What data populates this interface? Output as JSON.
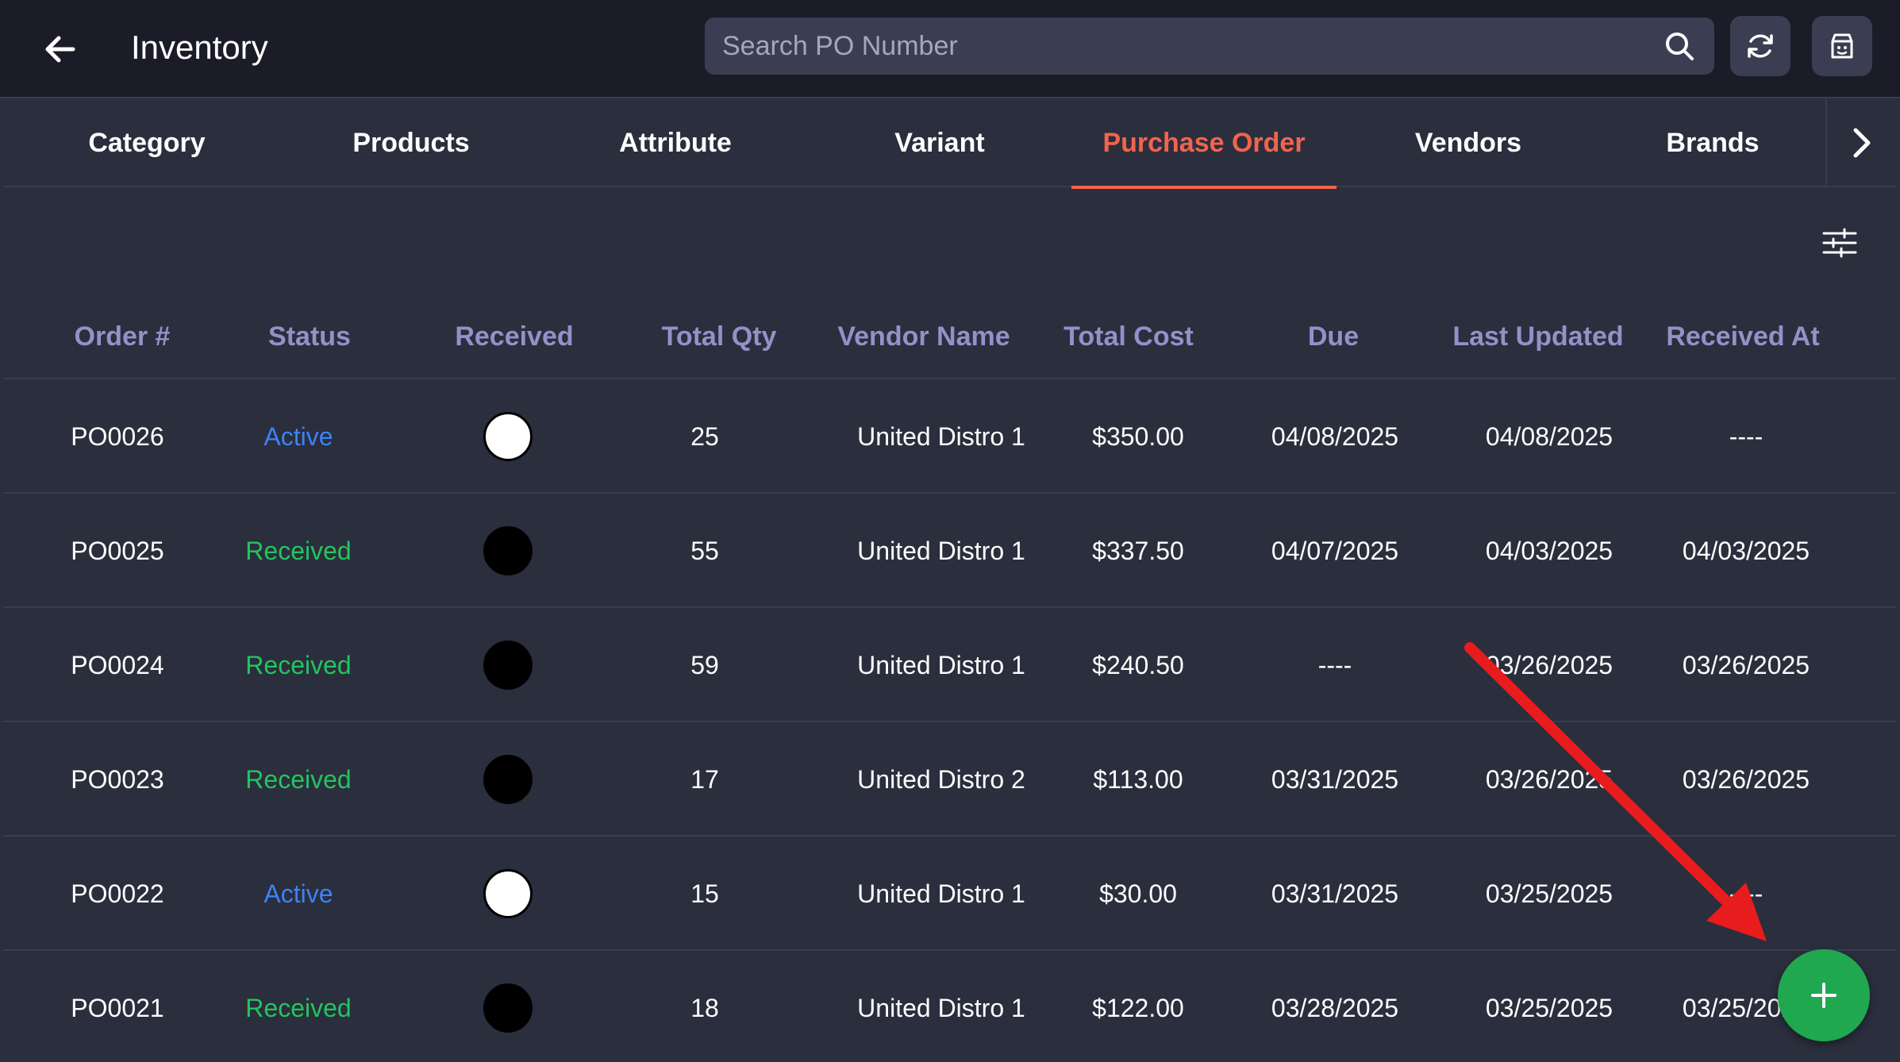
{
  "header": {
    "title": "Inventory",
    "search_placeholder": "Search PO Number",
    "icons": [
      "back-arrow-icon",
      "search-icon",
      "refresh-icon",
      "store-icon"
    ]
  },
  "tabs": [
    {
      "label": "Category",
      "active": false
    },
    {
      "label": "Products",
      "active": false
    },
    {
      "label": "Attribute",
      "active": false
    },
    {
      "label": "Variant",
      "active": false
    },
    {
      "label": "Purchase Order",
      "active": true
    },
    {
      "label": "Vendors",
      "active": false
    },
    {
      "label": "Brands",
      "active": false
    }
  ],
  "table": {
    "columns": [
      "Order #",
      "Status",
      "Received",
      "Total Qty",
      "Vendor Name",
      "Total Cost",
      "Due",
      "Last Updated",
      "Received At"
    ],
    "rows": [
      {
        "order": "PO0026",
        "status": "Active",
        "received": false,
        "qty": "25",
        "vendor": "United Distro 1",
        "cost": "$350.00",
        "due": "04/08/2025",
        "updated": "04/08/2025",
        "received_at": "----"
      },
      {
        "order": "PO0025",
        "status": "Received",
        "received": true,
        "qty": "55",
        "vendor": "United Distro 1",
        "cost": "$337.50",
        "due": "04/07/2025",
        "updated": "04/03/2025",
        "received_at": "04/03/2025"
      },
      {
        "order": "PO0024",
        "status": "Received",
        "received": true,
        "qty": "59",
        "vendor": "United Distro 1",
        "cost": "$240.50",
        "due": "----",
        "updated": "03/26/2025",
        "received_at": "03/26/2025"
      },
      {
        "order": "PO0023",
        "status": "Received",
        "received": true,
        "qty": "17",
        "vendor": "United Distro 2",
        "cost": "$113.00",
        "due": "03/31/2025",
        "updated": "03/26/2025",
        "received_at": "03/26/2025"
      },
      {
        "order": "PO0022",
        "status": "Active",
        "received": false,
        "qty": "15",
        "vendor": "United Distro 1",
        "cost": "$30.00",
        "due": "03/31/2025",
        "updated": "03/25/2025",
        "received_at": "----"
      },
      {
        "order": "PO0021",
        "status": "Received",
        "received": true,
        "qty": "18",
        "vendor": "United Distro 1",
        "cost": "$122.00",
        "due": "03/28/2025",
        "updated": "03/25/2025",
        "received_at": "03/25/2025"
      }
    ]
  },
  "colors": {
    "accent": "#f2644b",
    "active": "#3b82f6",
    "received": "#22c55e",
    "fab": "#1fa84f",
    "annotation_arrow": "#e81c1c"
  }
}
